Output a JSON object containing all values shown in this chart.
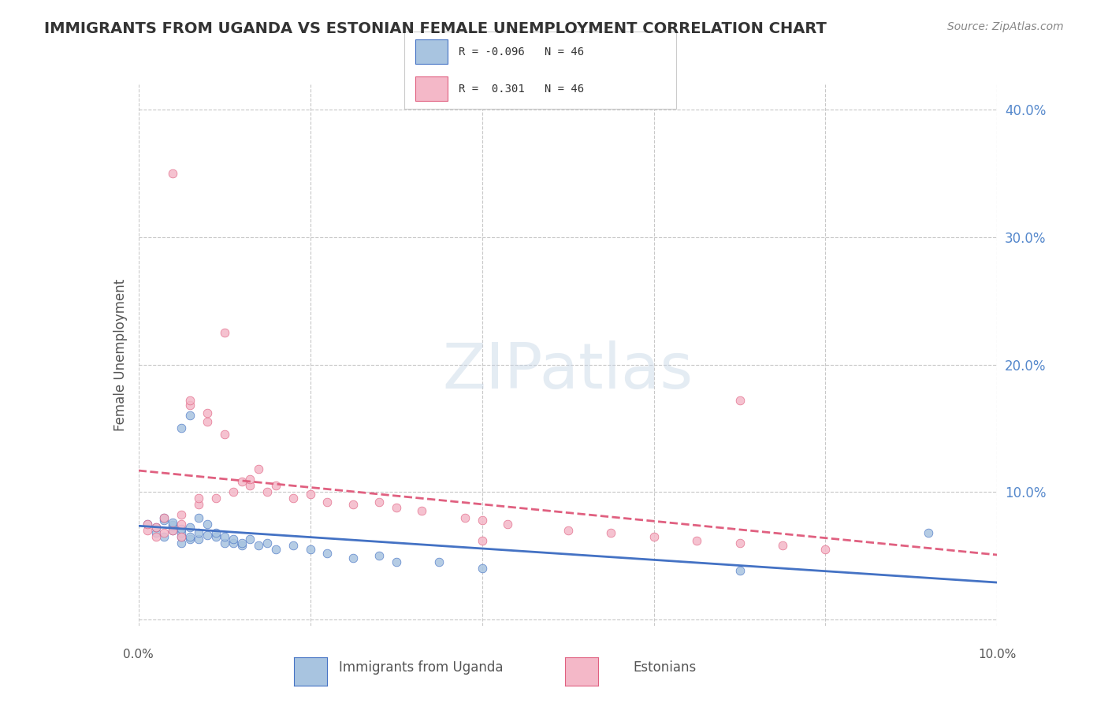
{
  "title": "IMMIGRANTS FROM UGANDA VS ESTONIAN FEMALE UNEMPLOYMENT CORRELATION CHART",
  "source": "Source: ZipAtlas.com",
  "ylabel": "Female Unemployment",
  "xlim": [
    0.0,
    0.1
  ],
  "ylim": [
    -0.005,
    0.42
  ],
  "color_blue": "#a8c4e0",
  "color_pink": "#f4b8c8",
  "line_color_blue": "#4472c4",
  "line_color_pink": "#e06080",
  "background_color": "#ffffff",
  "grid_color": "#c8c8c8",
  "uganda_scatter_x": [
    0.001,
    0.002,
    0.002,
    0.003,
    0.003,
    0.003,
    0.004,
    0.004,
    0.004,
    0.004,
    0.005,
    0.005,
    0.005,
    0.005,
    0.005,
    0.006,
    0.006,
    0.006,
    0.006,
    0.007,
    0.007,
    0.007,
    0.008,
    0.008,
    0.009,
    0.009,
    0.01,
    0.01,
    0.011,
    0.011,
    0.012,
    0.012,
    0.013,
    0.014,
    0.015,
    0.016,
    0.018,
    0.02,
    0.022,
    0.025,
    0.028,
    0.03,
    0.035,
    0.04,
    0.07,
    0.092
  ],
  "uganda_scatter_y": [
    0.075,
    0.068,
    0.072,
    0.065,
    0.078,
    0.08,
    0.07,
    0.073,
    0.074,
    0.076,
    0.06,
    0.065,
    0.068,
    0.071,
    0.15,
    0.063,
    0.065,
    0.072,
    0.16,
    0.063,
    0.068,
    0.08,
    0.066,
    0.075,
    0.065,
    0.068,
    0.06,
    0.065,
    0.06,
    0.063,
    0.058,
    0.06,
    0.063,
    0.058,
    0.06,
    0.055,
    0.058,
    0.055,
    0.052,
    0.048,
    0.05,
    0.045,
    0.045,
    0.04,
    0.038,
    0.068
  ],
  "estonian_scatter_x": [
    0.001,
    0.001,
    0.002,
    0.002,
    0.003,
    0.003,
    0.004,
    0.004,
    0.005,
    0.005,
    0.005,
    0.006,
    0.006,
    0.007,
    0.007,
    0.008,
    0.008,
    0.009,
    0.01,
    0.01,
    0.011,
    0.012,
    0.013,
    0.013,
    0.014,
    0.015,
    0.016,
    0.018,
    0.02,
    0.022,
    0.025,
    0.028,
    0.03,
    0.033,
    0.038,
    0.04,
    0.043,
    0.05,
    0.055,
    0.06,
    0.065,
    0.07,
    0.075,
    0.08,
    0.07,
    0.04
  ],
  "estonian_scatter_y": [
    0.07,
    0.075,
    0.065,
    0.072,
    0.068,
    0.08,
    0.35,
    0.07,
    0.075,
    0.065,
    0.082,
    0.168,
    0.172,
    0.09,
    0.095,
    0.155,
    0.162,
    0.095,
    0.145,
    0.225,
    0.1,
    0.108,
    0.105,
    0.11,
    0.118,
    0.1,
    0.105,
    0.095,
    0.098,
    0.092,
    0.09,
    0.092,
    0.088,
    0.085,
    0.08,
    0.078,
    0.075,
    0.07,
    0.068,
    0.065,
    0.062,
    0.06,
    0.058,
    0.055,
    0.172,
    0.062
  ]
}
